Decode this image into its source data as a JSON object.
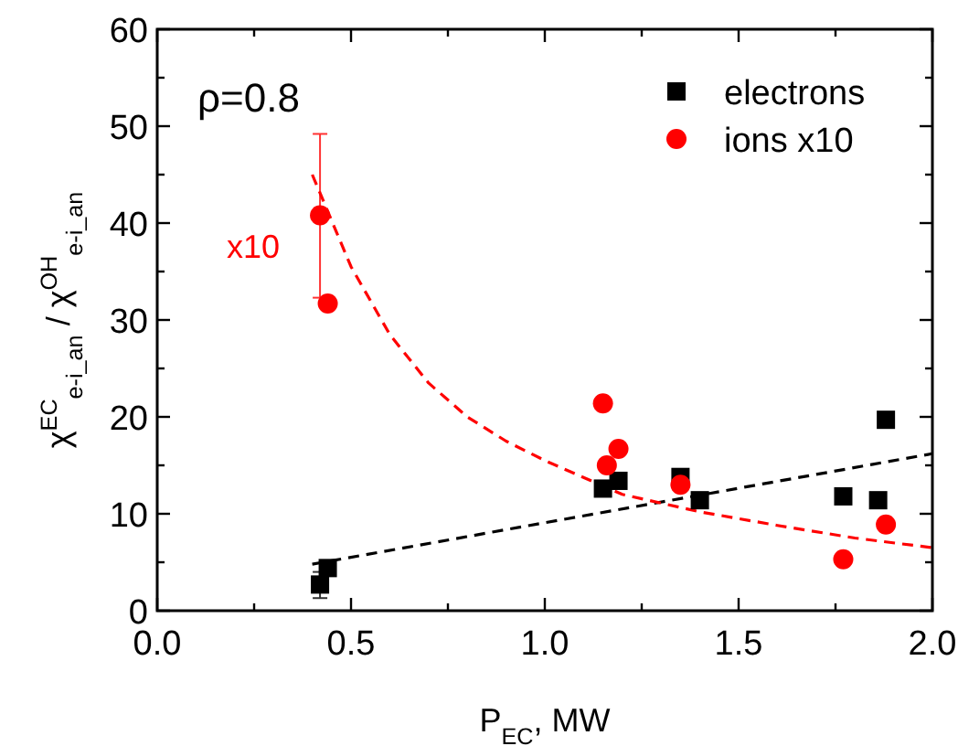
{
  "chart_data": {
    "type": "scatter",
    "xlabel": "P$_{EC}$, MW",
    "ylabel": "χ$^{EC}$$_{e-i_an}$ / χ$^{OH}$$_{e-i_an}$",
    "xlim": [
      0,
      2
    ],
    "ylim": [
      0,
      60
    ],
    "xticks": [
      {
        "value": 0,
        "label": "0.0"
      },
      {
        "value": 0.25,
        "label": null
      },
      {
        "value": 0.5,
        "label": "0.5"
      },
      {
        "value": 0.75,
        "label": null
      },
      {
        "value": 1,
        "label": "1.0"
      },
      {
        "value": 1.25,
        "label": null
      },
      {
        "value": 1.5,
        "label": "1.5"
      },
      {
        "value": 1.75,
        "label": null
      },
      {
        "value": 2,
        "label": "2.0"
      }
    ],
    "yticks": [
      0,
      {
        "value": 5,
        "label": null
      },
      10,
      {
        "value": 15,
        "label": null
      },
      20,
      {
        "value": 25,
        "label": null
      },
      30,
      {
        "value": 35,
        "label": null
      },
      40,
      {
        "value": 45,
        "label": null
      },
      50,
      {
        "value": 55,
        "label": null
      },
      60
    ],
    "legend": "top right",
    "grid": false,
    "annotations": [
      "ρ=0.8",
      "x10"
    ],
    "series": [
      {
        "name": "electrons",
        "color": "#000000",
        "marker": "square",
        "x": [
          0.42,
          0.44,
          1.15,
          1.19,
          1.35,
          1.4,
          1.77,
          1.86,
          1.88
        ],
        "values": [
          2.7,
          4.4,
          12.6,
          13.4,
          13.8,
          11.4,
          11.8,
          11.4,
          19.7
        ],
        "errors": [
          [
            1.3,
            4.0
          ],
          null,
          null,
          null,
          null,
          null,
          null,
          null,
          null
        ]
      },
      {
        "name": "ions x10",
        "color": "#ff0000",
        "marker": "circle",
        "x": [
          0.42,
          0.44,
          1.15,
          1.16,
          1.19,
          1.35,
          1.77,
          1.88
        ],
        "values": [
          40.8,
          31.7,
          21.4,
          15.0,
          16.7,
          13.0,
          5.3,
          8.9
        ],
        "errors": [
          [
            32.3,
            49.2
          ],
          null,
          null,
          null,
          null,
          null,
          null,
          null
        ]
      },
      {
        "type": "line",
        "color": "#000000",
        "line_style": "dashed",
        "marker": "none",
        "x": [
          0.4,
          2.0
        ],
        "values": [
          4.8,
          16.2
        ]
      },
      {
        "type": "line",
        "color": "#ff0000",
        "line_style": "dashed",
        "marker": "none",
        "x": [
          0.4,
          0.5,
          0.6,
          0.7,
          0.8,
          0.9,
          1.0,
          1.2,
          1.4,
          1.6,
          1.8,
          2.0
        ],
        "values": [
          45,
          35.5,
          28.5,
          23.5,
          20,
          17.5,
          15.5,
          12,
          10.2,
          8.8,
          7.5,
          6.5
        ]
      }
    ]
  }
}
